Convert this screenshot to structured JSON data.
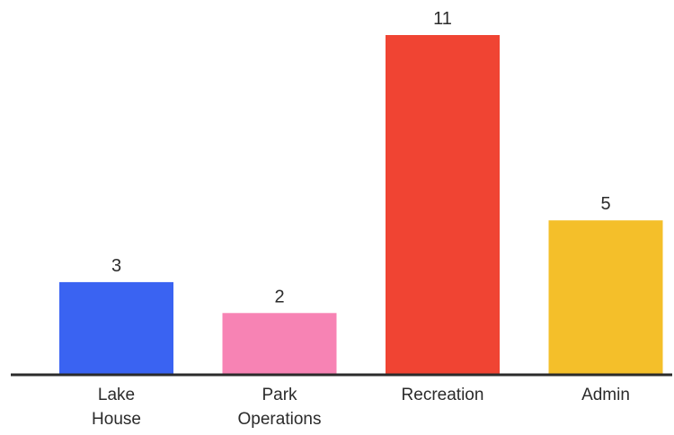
{
  "chart_data": {
    "type": "bar",
    "categories": [
      [
        "Lake",
        "House"
      ],
      [
        "Park",
        "Operations"
      ],
      [
        "Recreation"
      ],
      [
        "Admin"
      ]
    ],
    "values": [
      3,
      2,
      11,
      5
    ],
    "value_labels": [
      "3",
      "2",
      "11",
      "5"
    ],
    "colors": [
      "#3a63f2",
      "#f783b4",
      "#f04433",
      "#f4bf2a"
    ],
    "axis_color": "#2b2b2b",
    "ylim": [
      0,
      11
    ],
    "grid": false,
    "legend": "none"
  }
}
